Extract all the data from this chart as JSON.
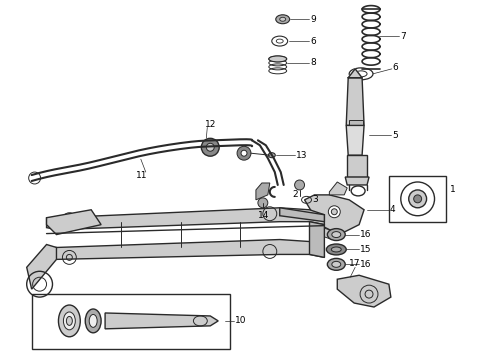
{
  "bg_color": "#ffffff",
  "line_color": "#2a2a2a",
  "label_color": "#000000",
  "figsize": [
    4.9,
    3.6
  ],
  "dpi": 100,
  "gray_fill": "#cccccc",
  "dark_fill": "#888888",
  "mid_fill": "#aaaaaa"
}
